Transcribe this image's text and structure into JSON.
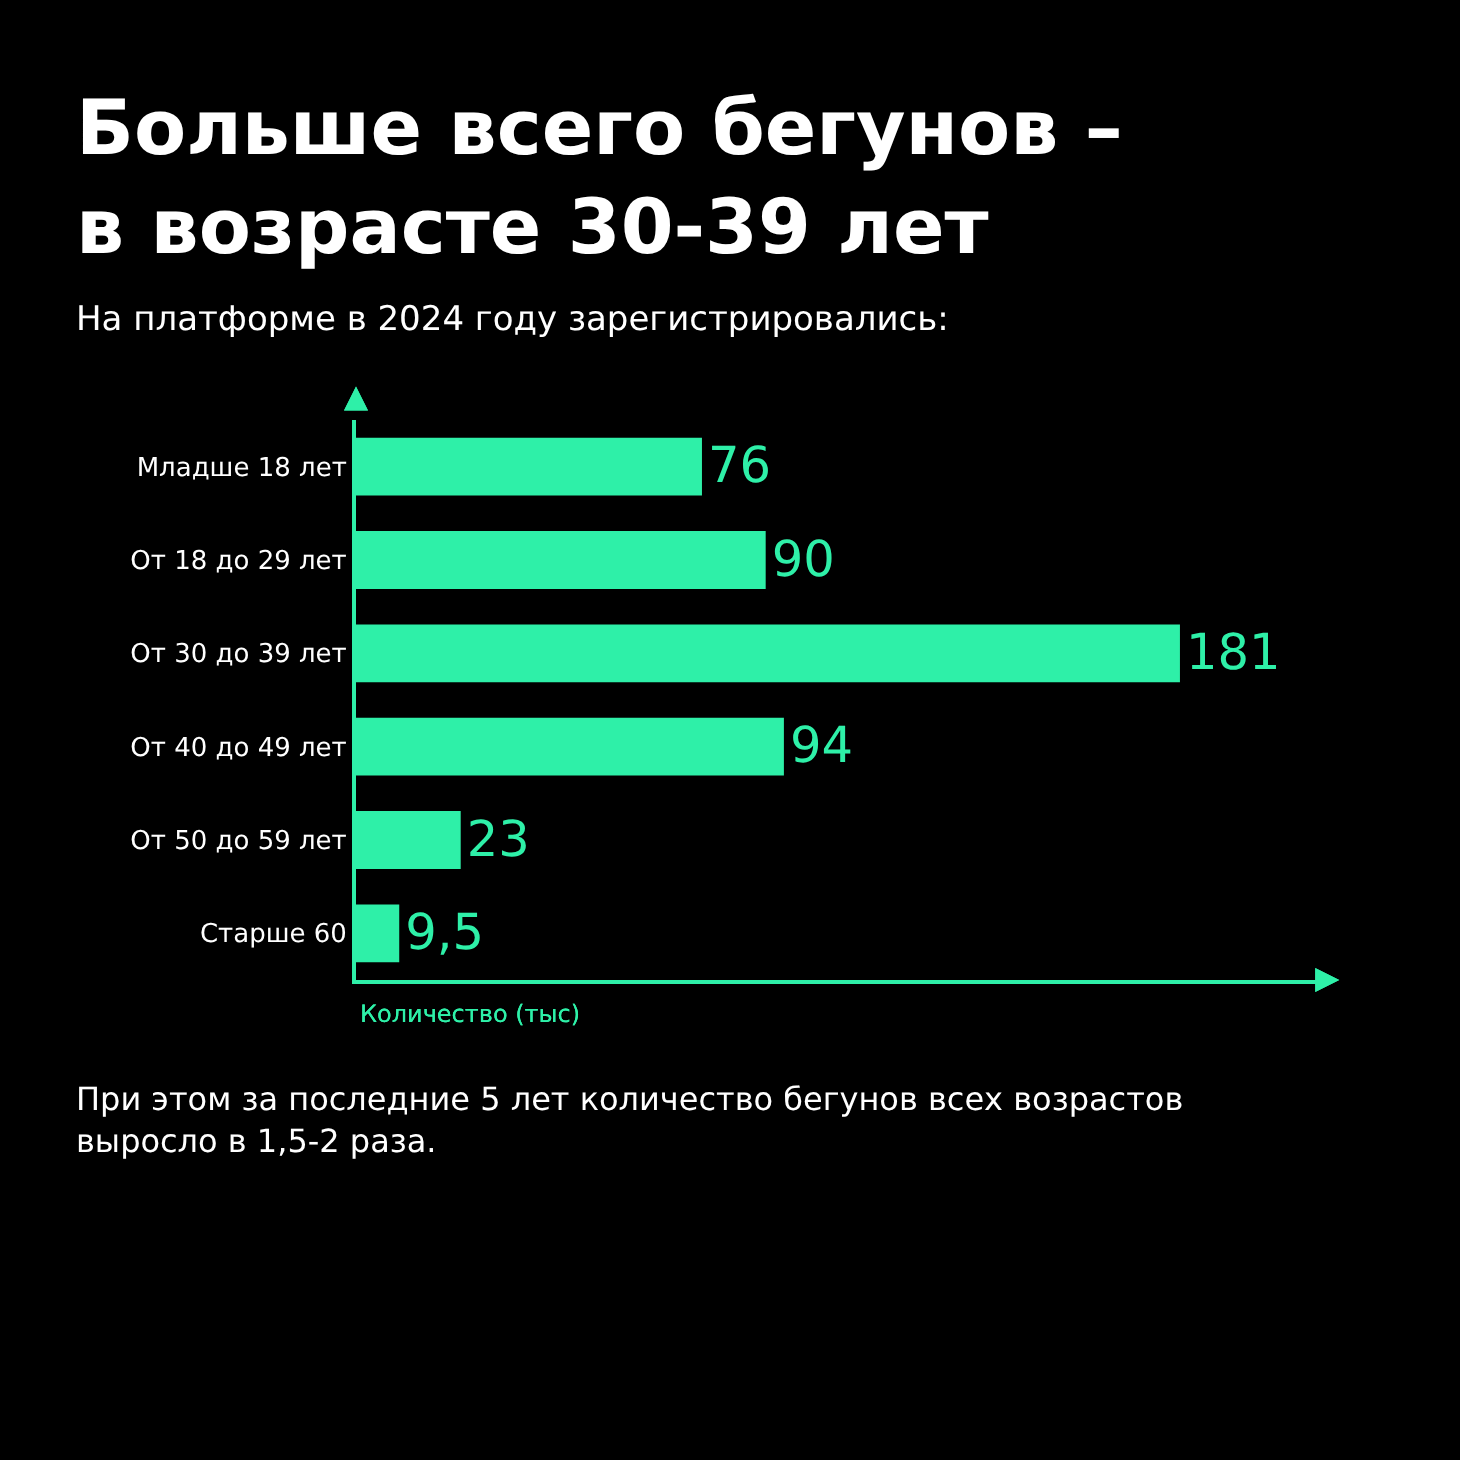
{
  "chart_data": {
    "type": "bar",
    "orientation": "horizontal",
    "title": "Больше всего бегунов –\nв возрасте 30-39 лет",
    "subtitle": "На платформе в 2024 году зарегистрировались:",
    "xlabel": "Количество (тыс)",
    "categories": [
      "Младше 18 лет",
      "От 18 до 29 лет",
      "От 30 до 39 лет",
      "От 40 до 49 лет",
      "От 50 до 59 лет",
      "Старше 60"
    ],
    "values": [
      76,
      90,
      181,
      94,
      23,
      9.5
    ],
    "value_labels": [
      "76",
      "90",
      "181",
      "94",
      "23",
      "9,5"
    ],
    "color": "#2ef0a8",
    "grid": false,
    "legend": false,
    "tick_labels": "y",
    "annotations": [
      "При этом за последние 5 лет количество бегунов всех возрастов\nвыросло в 1,5-2 раза."
    ]
  }
}
